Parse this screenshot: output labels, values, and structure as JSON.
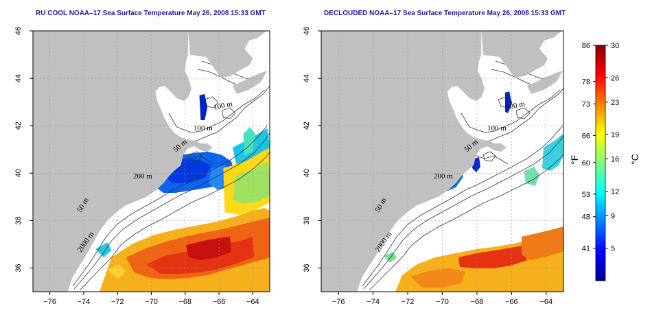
{
  "panels": [
    {
      "title": "RU COOL NOAA–17 Sea Surface Temperature May 26, 2008 15:33 GMT",
      "cloud_removed": false
    },
    {
      "title": "DECLOUDED NOAA–17 Sea Surface Temperature May 26, 2008 15:33 GMT",
      "cloud_removed": true
    }
  ],
  "axes": {
    "lon_range": [
      -77,
      -63
    ],
    "lat_range": [
      35,
      46
    ],
    "lon_ticks": [
      "−76",
      "−74",
      "−72",
      "−70",
      "−68",
      "−66",
      "−64"
    ],
    "lat_ticks": [
      "36",
      "38",
      "40",
      "42",
      "44",
      "46"
    ]
  },
  "contour_labels": [
    "100 m",
    "100 m",
    "50 m",
    "200 m",
    "50 m",
    "2000 m"
  ],
  "colorbar": {
    "fahrenheit_unit": "°F",
    "celsius_unit": "°C",
    "fahrenheit_ticks": [
      "86",
      "78",
      "73",
      "66",
      "60",
      "53",
      "48",
      "41"
    ],
    "celsius_ticks": [
      "30",
      "26",
      "23",
      "19",
      "16",
      "12",
      "9",
      "5"
    ],
    "min_c": 1,
    "max_c": 30,
    "colors": [
      "#00008f",
      "#0000ff",
      "#0080ff",
      "#00ffff",
      "#80ff80",
      "#ffff00",
      "#ff8000",
      "#ff0000",
      "#800000"
    ]
  },
  "colors": {
    "land": "#c0c0c0",
    "ocean": "#ffffff",
    "title": "#1a1aa6"
  }
}
